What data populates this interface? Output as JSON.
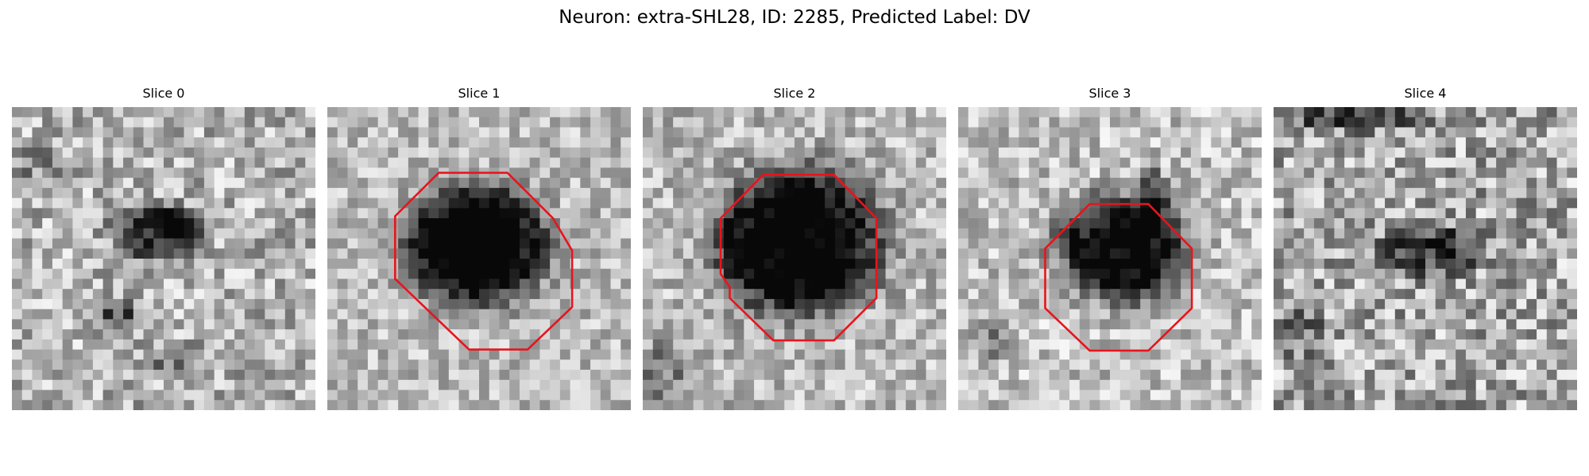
{
  "title": "Neuron: extra-SHL28, ID: 2285, Predicted Label: DV",
  "contour_color": "#e8141c",
  "panels": [
    {
      "label": "Slice 0",
      "has_contour": false
    },
    {
      "label": "Slice 1",
      "has_contour": true
    },
    {
      "label": "Slice 2",
      "has_contour": true
    },
    {
      "label": "Slice 3",
      "has_contour": true
    },
    {
      "label": "Slice 4",
      "has_contour": false
    }
  ]
}
